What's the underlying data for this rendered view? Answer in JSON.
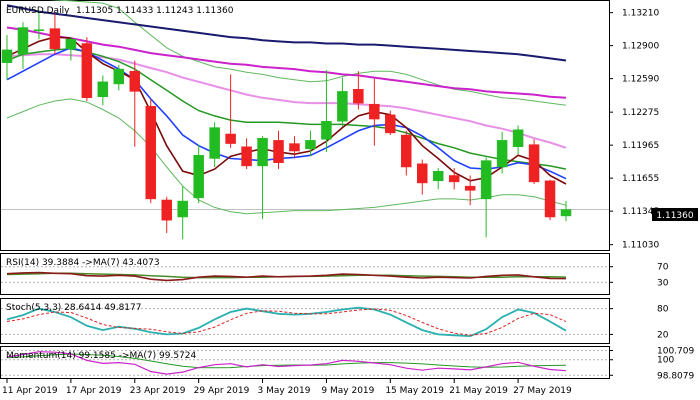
{
  "main": {
    "symbol": "EURUSD,Daily",
    "ohlc": "1.11305 1.11433 1.11243 1.11360",
    "last_price": "1.11360",
    "y_ticks": [
      "1.13210",
      "1.12900",
      "1.12590",
      "1.12275",
      "1.11965",
      "1.11655",
      "1.11345",
      "1.11030"
    ],
    "y_tick_values": [
      1.1321,
      1.129,
      1.1259,
      1.12275,
      1.11965,
      1.11655,
      1.11345,
      1.1103
    ]
  },
  "rsi": {
    "label": "RSI(14) 39.3884 ->MA(7) 43.4073",
    "levels": [
      "70",
      "30"
    ]
  },
  "stoch": {
    "label": "Stoch(5,3,3) 28.6414 49.8177",
    "levels": [
      "80",
      "20"
    ]
  },
  "momentum": {
    "label": "Momentum(14) 99.1585 ->MA(7) 99.5724",
    "levels": [
      "100.709",
      "100",
      "98.8079"
    ]
  },
  "x_axis": {
    "labels": [
      "11 Apr 2019",
      "17 Apr 2019",
      "23 Apr 2019",
      "29 Apr 2019",
      "3 May 2019",
      "9 May 2019",
      "15 May 2019",
      "21 May 2019",
      "27 May 2019"
    ]
  },
  "colors": {
    "bull": "#22bb22",
    "bear": "#ee2222",
    "ma_navy": "#1a1a6e",
    "ma_magenta": "#cc22cc",
    "ma_pink": "#e88fe8",
    "ma_green": "#229922",
    "ma_blue": "#1f3fff",
    "ma_brown": "#7a0a0a",
    "bollinger": "#5fb95f",
    "stoch_main": "#2ab0b0",
    "stoch_signal": "#dd2222",
    "rsi_main": "#8a1a1a",
    "rsi_ma": "#4a8a2a"
  },
  "chart_data": {
    "type": "candlestick",
    "title": "EURUSD,Daily",
    "ylim": [
      1.1098,
      1.1331
    ],
    "candles": [
      {
        "o": 1.1274,
        "h": 1.13,
        "l": 1.1258,
        "c": 1.1286
      },
      {
        "o": 1.1282,
        "h": 1.1312,
        "l": 1.1268,
        "c": 1.1307
      },
      {
        "o": 1.1305,
        "h": 1.1322,
        "l": 1.1296,
        "c": 1.1305
      },
      {
        "o": 1.1306,
        "h": 1.132,
        "l": 1.1282,
        "c": 1.1287
      },
      {
        "o": 1.1287,
        "h": 1.1298,
        "l": 1.1276,
        "c": 1.1296
      },
      {
        "o": 1.1292,
        "h": 1.1298,
        "l": 1.1238,
        "c": 1.1241
      },
      {
        "o": 1.1242,
        "h": 1.1262,
        "l": 1.1234,
        "c": 1.1256
      },
      {
        "o": 1.1254,
        "h": 1.1272,
        "l": 1.1248,
        "c": 1.1268
      },
      {
        "o": 1.1266,
        "h": 1.1276,
        "l": 1.1195,
        "c": 1.1247
      },
      {
        "o": 1.1233,
        "h": 1.124,
        "l": 1.1142,
        "c": 1.1146
      },
      {
        "o": 1.1145,
        "h": 1.1148,
        "l": 1.1114,
        "c": 1.1126
      },
      {
        "o": 1.1129,
        "h": 1.1158,
        "l": 1.1108,
        "c": 1.1144
      },
      {
        "o": 1.1147,
        "h": 1.1197,
        "l": 1.1142,
        "c": 1.1187
      },
      {
        "o": 1.1184,
        "h": 1.1218,
        "l": 1.1176,
        "c": 1.1213
      },
      {
        "o": 1.1207,
        "h": 1.1263,
        "l": 1.1194,
        "c": 1.1198
      },
      {
        "o": 1.1195,
        "h": 1.1203,
        "l": 1.1174,
        "c": 1.1177
      },
      {
        "o": 1.1177,
        "h": 1.1205,
        "l": 1.1127,
        "c": 1.1203
      },
      {
        "o": 1.1201,
        "h": 1.121,
        "l": 1.1174,
        "c": 1.118
      },
      {
        "o": 1.1198,
        "h": 1.1205,
        "l": 1.1185,
        "c": 1.1191
      },
      {
        "o": 1.1193,
        "h": 1.121,
        "l": 1.1186,
        "c": 1.1201
      },
      {
        "o": 1.1202,
        "h": 1.1267,
        "l": 1.119,
        "c": 1.1219
      },
      {
        "o": 1.1219,
        "h": 1.126,
        "l": 1.1214,
        "c": 1.1247
      },
      {
        "o": 1.1249,
        "h": 1.1266,
        "l": 1.123,
        "c": 1.1236
      },
      {
        "o": 1.1235,
        "h": 1.1259,
        "l": 1.1196,
        "c": 1.1221
      },
      {
        "o": 1.1225,
        "h": 1.1229,
        "l": 1.1206,
        "c": 1.1208
      },
      {
        "o": 1.1206,
        "h": 1.121,
        "l": 1.1168,
        "c": 1.1176
      },
      {
        "o": 1.1179,
        "h": 1.1183,
        "l": 1.115,
        "c": 1.1161
      },
      {
        "o": 1.1163,
        "h": 1.1175,
        "l": 1.1155,
        "c": 1.1172
      },
      {
        "o": 1.1168,
        "h": 1.1175,
        "l": 1.1155,
        "c": 1.1162
      },
      {
        "o": 1.1158,
        "h": 1.1168,
        "l": 1.114,
        "c": 1.1154
      },
      {
        "o": 1.1146,
        "h": 1.1185,
        "l": 1.111,
        "c": 1.1182
      },
      {
        "o": 1.1176,
        "h": 1.1209,
        "l": 1.117,
        "c": 1.1201
      },
      {
        "o": 1.1195,
        "h": 1.1215,
        "l": 1.1188,
        "c": 1.1211
      },
      {
        "o": 1.1197,
        "h": 1.1202,
        "l": 1.116,
        "c": 1.1162
      },
      {
        "o": 1.1163,
        "h": 1.1164,
        "l": 1.1126,
        "c": 1.1129
      },
      {
        "o": 1.113,
        "h": 1.1144,
        "l": 1.1125,
        "c": 1.1136
      }
    ],
    "series": [
      {
        "color": "#1a1a6e",
        "values": [
          1.1328,
          1.1325,
          1.1322,
          1.132,
          1.1318,
          1.1316,
          1.1314,
          1.1312,
          1.131,
          1.1308,
          1.1306,
          1.1304,
          1.1302,
          1.13,
          1.1298,
          1.1297,
          1.1295,
          1.1294,
          1.1293,
          1.1293,
          1.1292,
          1.1292,
          1.1291,
          1.1291,
          1.129,
          1.1289,
          1.1288,
          1.1287,
          1.1286,
          1.1285,
          1.1284,
          1.1283,
          1.1282,
          1.128,
          1.1278,
          1.1276
        ]
      },
      {
        "color": "#cc22cc",
        "values": [
          1.1307,
          1.1305,
          1.1302,
          1.1299,
          1.1297,
          1.1294,
          1.1291,
          1.1289,
          1.1286,
          1.1283,
          1.1281,
          1.1279,
          1.1277,
          1.1275,
          1.1273,
          1.1272,
          1.127,
          1.1269,
          1.1268,
          1.1266,
          1.1265,
          1.1263,
          1.1262,
          1.126,
          1.1258,
          1.1256,
          1.1254,
          1.1252,
          1.125,
          1.1249,
          1.1247,
          1.1246,
          1.1245,
          1.1244,
          1.1242,
          1.1241
        ]
      },
      {
        "color": "#e88fe8",
        "values": [
          1.128,
          1.1281,
          1.1282,
          1.1282,
          1.1281,
          1.128,
          1.1279,
          1.1277,
          1.1273,
          1.1269,
          1.1265,
          1.126,
          1.1256,
          1.1252,
          1.1248,
          1.1244,
          1.1241,
          1.1239,
          1.1237,
          1.1236,
          1.1236,
          1.1236,
          1.1235,
          1.1234,
          1.1233,
          1.1231,
          1.1228,
          1.1225,
          1.1222,
          1.1219,
          1.1215,
          1.1212,
          1.1208,
          1.1203,
          1.1199,
          1.1194
        ]
      },
      {
        "color": "#229922",
        "values": [
          1.1276,
          1.1282,
          1.1284,
          1.1286,
          1.1287,
          1.1284,
          1.128,
          1.1275,
          1.1268,
          1.1258,
          1.1248,
          1.1238,
          1.1229,
          1.1224,
          1.122,
          1.1218,
          1.1218,
          1.1218,
          1.1217,
          1.1216,
          1.1216,
          1.1216,
          1.1215,
          1.1214,
          1.1212,
          1.1208,
          1.1203,
          1.1198,
          1.1194,
          1.1189,
          1.1186,
          1.1183,
          1.1181,
          1.1179,
          1.1177,
          1.1174
        ]
      },
      {
        "color": "#1f3fff",
        "values": [
          1.1258,
          1.1266,
          1.1274,
          1.1282,
          1.1288,
          1.1284,
          1.1276,
          1.1268,
          1.1258,
          1.124,
          1.1224,
          1.1206,
          1.1196,
          1.1189,
          1.1184,
          1.1183,
          1.1182,
          1.1184,
          1.1185,
          1.1187,
          1.1194,
          1.1202,
          1.121,
          1.1215,
          1.1216,
          1.1213,
          1.1205,
          1.1194,
          1.1182,
          1.1175,
          1.1174,
          1.1176,
          1.118,
          1.1178,
          1.1172,
          1.1165
        ]
      },
      {
        "color": "#7a0a0a",
        "values": [
          1.128,
          1.1287,
          1.1294,
          1.1298,
          1.1297,
          1.1284,
          1.1273,
          1.1266,
          1.1258,
          1.1228,
          1.1196,
          1.1172,
          1.1168,
          1.1174,
          1.1186,
          1.119,
          1.1193,
          1.119,
          1.1188,
          1.1191,
          1.12,
          1.1213,
          1.1224,
          1.1228,
          1.1225,
          1.1213,
          1.1196,
          1.1184,
          1.1171,
          1.1163,
          1.1166,
          1.1176,
          1.1187,
          1.1182,
          1.1168,
          1.116
        ]
      }
    ],
    "bollinger": {
      "upper": [
        1.1335,
        1.1335,
        1.1334,
        1.1333,
        1.1332,
        1.1331,
        1.133,
        1.1325,
        1.1312,
        1.13,
        1.1288,
        1.128,
        1.1275,
        1.127,
        1.1268,
        1.1265,
        1.1263,
        1.126,
        1.1258,
        1.1256,
        1.1257,
        1.1261,
        1.1264,
        1.1266,
        1.1266,
        1.1263,
        1.1258,
        1.1253,
        1.1249,
        1.1247,
        1.1244,
        1.1241,
        1.124,
        1.1238,
        1.1236,
        1.1234
      ],
      "lower": [
        1.1222,
        1.1228,
        1.1234,
        1.1238,
        1.124,
        1.1237,
        1.123,
        1.1222,
        1.121,
        1.1195,
        1.1176,
        1.1158,
        1.1145,
        1.1138,
        1.1134,
        1.1132,
        1.1133,
        1.1134,
        1.1135,
        1.1135,
        1.1135,
        1.1136,
        1.1137,
        1.1138,
        1.114,
        1.1142,
        1.1144,
        1.1146,
        1.1146,
        1.1145,
        1.1147,
        1.115,
        1.115,
        1.1148,
        1.1144,
        1.114
      ]
    },
    "rsi": {
      "ylim": [
        0,
        100
      ],
      "levels": [
        70,
        30
      ],
      "main": [
        52,
        54,
        55,
        53,
        52,
        47,
        46,
        48,
        46,
        38,
        35,
        37,
        43,
        46,
        45,
        43,
        46,
        44,
        45,
        46,
        48,
        51,
        50,
        48,
        46,
        43,
        41,
        43,
        42,
        41,
        45,
        48,
        49,
        44,
        40,
        39.4
      ],
      "ma": [
        50,
        51,
        52,
        53,
        53,
        52,
        51,
        50,
        49,
        47,
        45,
        43,
        42,
        42,
        42,
        43,
        43,
        44,
        45,
        45,
        46,
        47,
        48,
        48,
        48,
        47,
        46,
        45,
        44,
        43,
        43,
        43,
        44,
        44,
        44,
        43.4
      ]
    },
    "stoch": {
      "ylim": [
        0,
        100
      ],
      "levels": [
        80,
        20
      ],
      "main": [
        55,
        65,
        80,
        72,
        60,
        40,
        30,
        38,
        33,
        25,
        20,
        22,
        35,
        55,
        72,
        80,
        74,
        68,
        66,
        68,
        72,
        78,
        82,
        78,
        66,
        48,
        30,
        20,
        18,
        16,
        32,
        60,
        78,
        70,
        50,
        28.6
      ],
      "signal": [
        50,
        56,
        66,
        72,
        71,
        58,
        43,
        36,
        34,
        32,
        26,
        22,
        26,
        37,
        54,
        69,
        75,
        74,
        69,
        68,
        68,
        72,
        77,
        79,
        76,
        64,
        48,
        33,
        23,
        18,
        22,
        36,
        57,
        69,
        66,
        49.8
      ]
    },
    "momentum": {
      "ylim": [
        98.6,
        100.9
      ],
      "levels": [
        100.709,
        100,
        98.8079
      ],
      "main": [
        100.2,
        100.4,
        100.62,
        100.58,
        100.45,
        99.95,
        99.72,
        99.78,
        99.65,
        99.1,
        98.9,
        99.05,
        99.4,
        99.62,
        99.7,
        99.45,
        99.62,
        99.48,
        99.55,
        99.6,
        99.7,
        99.95,
        99.88,
        99.75,
        99.62,
        99.35,
        99.2,
        99.35,
        99.3,
        99.22,
        99.45,
        99.7,
        99.8,
        99.5,
        99.25,
        99.16
      ],
      "ma": [
        100.15,
        100.22,
        100.3,
        100.38,
        100.44,
        100.4,
        100.35,
        100.25,
        100.1,
        99.9,
        99.7,
        99.5,
        99.4,
        99.38,
        99.4,
        99.48,
        99.55,
        99.58,
        99.6,
        99.58,
        99.6,
        99.68,
        99.74,
        99.78,
        99.78,
        99.74,
        99.68,
        99.6,
        99.52,
        99.45,
        99.42,
        99.44,
        99.5,
        99.54,
        99.56,
        99.57
      ]
    }
  }
}
